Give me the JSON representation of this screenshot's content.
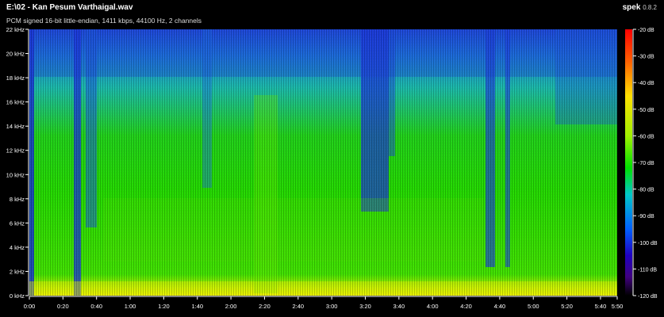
{
  "header": {
    "file_title": "E:\\02 - Kan Pesum Varthaigal.wav",
    "subtitle": "PCM signed 16-bit little-endian, 1411 kbps, 44100 Hz, 2 channels",
    "app_name": "spek",
    "app_version": "0.8.2"
  },
  "freq_axis": {
    "labels": [
      "22 kHz",
      "20 kHz",
      "18 kHz",
      "16 kHz",
      "14 kHz",
      "12 kHz",
      "10 kHz",
      "8 kHz",
      "6 kHz",
      "4 kHz",
      "2 kHz",
      "0 kHz"
    ]
  },
  "time_axis": {
    "labels": [
      "0:00",
      "0:20",
      "0:40",
      "1:00",
      "1:20",
      "1:40",
      "2:00",
      "2:20",
      "2:40",
      "3:00",
      "3:20",
      "3:40",
      "4:00",
      "4:20",
      "4:40",
      "5:00",
      "5:20",
      "5:40",
      "5:50"
    ]
  },
  "db_scale": {
    "labels": [
      "-20 dB",
      "-30 dB",
      "-40 dB",
      "-50 dB",
      "-60 dB",
      "-70 dB",
      "-80 dB",
      "-90 dB",
      "-100 dB",
      "-110 dB",
      "-120 dB"
    ]
  },
  "colors": {
    "background": "#000000",
    "dominant": "#20d800",
    "high_band": "#1ab0c8",
    "dark_band": "#1a2fd8"
  }
}
